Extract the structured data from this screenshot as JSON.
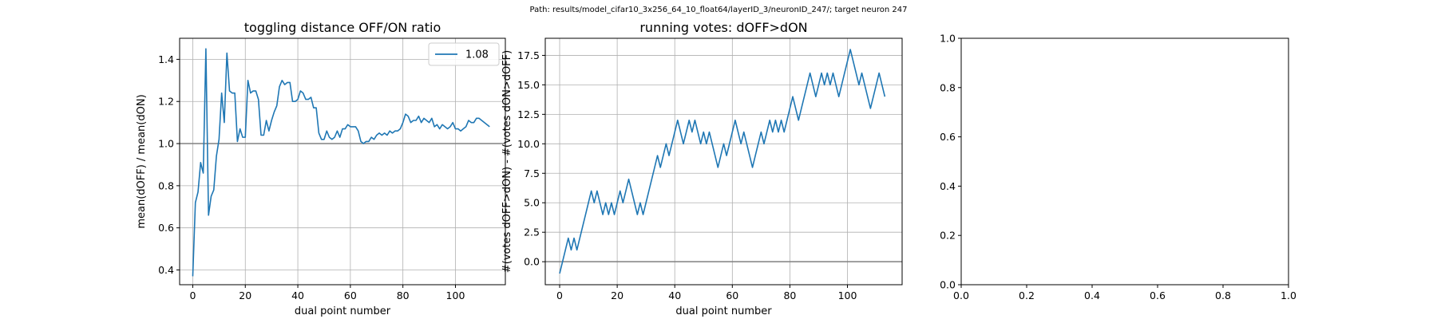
{
  "suptitle": "Path: results/model_cifar10_3x256_64_10_float64/layerID_3/neuronID_247/; target neuron 247",
  "colors": {
    "line": "#1f77b4",
    "grid": "#b0b0b0",
    "refline": "#808080"
  },
  "chart_data": [
    {
      "type": "line",
      "title": "toggling distance OFF/ON ratio",
      "xlabel": "dual point number",
      "ylabel": "mean(dOFF) / mean(dON)",
      "xlim": [
        -5,
        119
      ],
      "ylim": [
        0.33,
        1.5
      ],
      "xticks": [
        0,
        20,
        40,
        60,
        80,
        100
      ],
      "xtick_labels": [
        "0",
        "20",
        "40",
        "60",
        "80",
        "100"
      ],
      "yticks": [
        0.4,
        0.6,
        0.8,
        1.0,
        1.2,
        1.4
      ],
      "ytick_labels": [
        "0.4",
        "0.6",
        "0.8",
        "1.0",
        "1.2",
        "1.4"
      ],
      "grid": true,
      "hline": 1.0,
      "legend": {
        "position": "top-right",
        "entries": [
          "1.08"
        ]
      },
      "series": [
        {
          "name": "1.08",
          "x": [
            0,
            1,
            2,
            3,
            4,
            5,
            6,
            7,
            8,
            9,
            10,
            11,
            12,
            13,
            14,
            15,
            16,
            17,
            18,
            19,
            20,
            21,
            22,
            23,
            24,
            25,
            26,
            27,
            28,
            29,
            30,
            31,
            32,
            33,
            34,
            35,
            36,
            37,
            38,
            39,
            40,
            41,
            42,
            43,
            44,
            45,
            46,
            47,
            48,
            49,
            50,
            51,
            52,
            53,
            54,
            55,
            56,
            57,
            58,
            59,
            60,
            61,
            62,
            63,
            64,
            65,
            66,
            67,
            68,
            69,
            70,
            71,
            72,
            73,
            74,
            75,
            76,
            77,
            78,
            79,
            80,
            81,
            82,
            83,
            84,
            85,
            86,
            87,
            88,
            89,
            90,
            91,
            92,
            93,
            94,
            95,
            96,
            97,
            98,
            99,
            100,
            101,
            102,
            103,
            104,
            105,
            106,
            107,
            108,
            109,
            110,
            111,
            112,
            113
          ],
          "y": [
            0.37,
            0.72,
            0.77,
            0.91,
            0.86,
            1.45,
            0.66,
            0.75,
            0.78,
            0.94,
            1.02,
            1.24,
            1.1,
            1.43,
            1.25,
            1.24,
            1.24,
            1.01,
            1.07,
            1.03,
            1.03,
            1.3,
            1.24,
            1.25,
            1.25,
            1.21,
            1.04,
            1.04,
            1.11,
            1.06,
            1.11,
            1.15,
            1.18,
            1.27,
            1.3,
            1.28,
            1.29,
            1.29,
            1.2,
            1.2,
            1.21,
            1.25,
            1.24,
            1.21,
            1.21,
            1.22,
            1.17,
            1.17,
            1.05,
            1.02,
            1.02,
            1.06,
            1.03,
            1.02,
            1.03,
            1.06,
            1.03,
            1.07,
            1.07,
            1.09,
            1.08,
            1.08,
            1.08,
            1.06,
            1.01,
            1.0,
            1.01,
            1.01,
            1.03,
            1.02,
            1.04,
            1.05,
            1.04,
            1.05,
            1.04,
            1.06,
            1.05,
            1.06,
            1.06,
            1.07,
            1.1,
            1.14,
            1.13,
            1.1,
            1.11,
            1.11,
            1.13,
            1.1,
            1.12,
            1.11,
            1.1,
            1.12,
            1.08,
            1.09,
            1.07,
            1.09,
            1.08,
            1.07,
            1.08,
            1.1,
            1.07,
            1.07,
            1.06,
            1.07,
            1.08,
            1.11,
            1.1,
            1.1,
            1.12,
            1.12,
            1.11,
            1.1,
            1.09,
            1.08
          ]
        }
      ]
    },
    {
      "type": "line",
      "title": "running votes: dOFF>dON",
      "xlabel": "dual point number",
      "ylabel": "#(votes dOFF>dON) - #(votes dON>dOFF)",
      "xlim": [
        -5,
        119
      ],
      "ylim": [
        -1.95,
        18.95
      ],
      "xticks": [
        0,
        20,
        40,
        60,
        80,
        100
      ],
      "xtick_labels": [
        "0",
        "20",
        "40",
        "60",
        "80",
        "100"
      ],
      "yticks": [
        0.0,
        2.5,
        5.0,
        7.5,
        10.0,
        12.5,
        15.0,
        17.5
      ],
      "ytick_labels": [
        "0.0",
        "2.5",
        "5.0",
        "7.5",
        "10.0",
        "12.5",
        "15.0",
        "17.5"
      ],
      "grid": true,
      "hline": 0.0,
      "series": [
        {
          "x": [
            0,
            1,
            2,
            3,
            4,
            5,
            6,
            7,
            8,
            9,
            10,
            11,
            12,
            13,
            14,
            15,
            16,
            17,
            18,
            19,
            20,
            21,
            22,
            23,
            24,
            25,
            26,
            27,
            28,
            29,
            30,
            31,
            32,
            33,
            34,
            35,
            36,
            37,
            38,
            39,
            40,
            41,
            42,
            43,
            44,
            45,
            46,
            47,
            48,
            49,
            50,
            51,
            52,
            53,
            54,
            55,
            56,
            57,
            58,
            59,
            60,
            61,
            62,
            63,
            64,
            65,
            66,
            67,
            68,
            69,
            70,
            71,
            72,
            73,
            74,
            75,
            76,
            77,
            78,
            79,
            80,
            81,
            82,
            83,
            84,
            85,
            86,
            87,
            88,
            89,
            90,
            91,
            92,
            93,
            94,
            95,
            96,
            97,
            98,
            99,
            100,
            101,
            102,
            103,
            104,
            105,
            106,
            107,
            108,
            109,
            110,
            111,
            112,
            113
          ],
          "y": [
            -1,
            0,
            1,
            2,
            1,
            2,
            1,
            2,
            3,
            4,
            5,
            6,
            5,
            6,
            5,
            4,
            5,
            4,
            5,
            4,
            5,
            6,
            5,
            6,
            7,
            6,
            5,
            4,
            5,
            4,
            5,
            6,
            7,
            8,
            9,
            8,
            9,
            10,
            9,
            10,
            11,
            12,
            11,
            10,
            11,
            12,
            11,
            12,
            11,
            10,
            11,
            10,
            11,
            10,
            9,
            8,
            9,
            10,
            9,
            10,
            11,
            12,
            11,
            10,
            11,
            10,
            9,
            8,
            9,
            10,
            11,
            10,
            11,
            12,
            11,
            12,
            11,
            12,
            11,
            12,
            13,
            14,
            13,
            12,
            13,
            14,
            15,
            16,
            15,
            14,
            15,
            16,
            15,
            16,
            15,
            16,
            15,
            14,
            15,
            16,
            17,
            18,
            17,
            16,
            15,
            16,
            15,
            14,
            13,
            14,
            15,
            16,
            15,
            14
          ]
        }
      ]
    },
    {
      "type": "line",
      "title": "",
      "xlabel": "",
      "ylabel": "",
      "xlim": [
        0,
        1
      ],
      "ylim": [
        0,
        1
      ],
      "xticks": [
        0.0,
        0.2,
        0.4,
        0.6,
        0.8,
        1.0
      ],
      "xtick_labels": [
        "0.0",
        "0.2",
        "0.4",
        "0.6",
        "0.8",
        "1.0"
      ],
      "yticks": [
        0.0,
        0.2,
        0.4,
        0.6,
        0.8,
        1.0
      ],
      "ytick_labels": [
        "0.0",
        "0.2",
        "0.4",
        "0.6",
        "0.8",
        "1.0"
      ],
      "grid": false,
      "series": []
    }
  ]
}
